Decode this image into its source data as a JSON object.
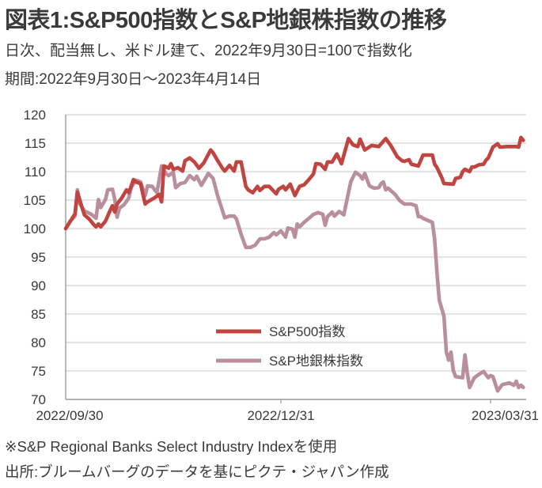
{
  "header": {
    "title": "図表1:S&P500指数とS&P地銀株指数の推移",
    "subtitle": "日次、配当無し、米ドル建て、2022年9月30日=100で指数化",
    "period": "期間:2022年9月30日～2023年4月14日"
  },
  "footer": {
    "note": "※S&P Regional Banks Select Industry Indexを使用",
    "source": "出所:ブルームバーグのデータを基にピクテ・ジャパン作成"
  },
  "chart_data": {
    "type": "line",
    "title": "図表1:S&P500指数とS&P地銀株指数の推移",
    "xlabel": "",
    "ylabel": "",
    "x_unit": "days since 2022/09/30",
    "xlim": [
      0,
      196
    ],
    "ylim": [
      70,
      120
    ],
    "y_ticks": [
      70,
      75,
      80,
      85,
      90,
      95,
      100,
      105,
      110,
      115,
      120
    ],
    "y_tick_labels": [
      "70",
      "75",
      "80",
      "85",
      "90",
      "95",
      "100",
      "105",
      "110",
      "115",
      "120"
    ],
    "x_ticks": [
      0,
      92,
      182
    ],
    "x_tick_labels": [
      "2022/09/30",
      "2022/12/31",
      "2023/03/31"
    ],
    "grid": true,
    "legend_position": "center-bottom",
    "colors": {
      "sp500": "#c0443f",
      "regional": "#b98e9f",
      "grid": "#e4e4e4",
      "axis": "#999999"
    },
    "series": [
      {
        "name": "S&P500指数",
        "color": "#c0443f",
        "points": [
          [
            0,
            100
          ],
          [
            4,
            102.6
          ],
          [
            5,
            106.4
          ],
          [
            7,
            103.7
          ],
          [
            8,
            102.4
          ],
          [
            10,
            101.7
          ],
          [
            12,
            100.7
          ],
          [
            13,
            100.3
          ],
          [
            14,
            100.8
          ],
          [
            15,
            100.3
          ],
          [
            17,
            101.3
          ],
          [
            19,
            103.2
          ],
          [
            20,
            104
          ],
          [
            21,
            102.9
          ],
          [
            22,
            104.3
          ],
          [
            24,
            105.4
          ],
          [
            26,
            106.8
          ],
          [
            27,
            106.3
          ],
          [
            29,
            108.6
          ],
          [
            30,
            108.2
          ],
          [
            32,
            107.9
          ],
          [
            34,
            104.3
          ],
          [
            35,
            104.7
          ],
          [
            38,
            105.4
          ],
          [
            40,
            106
          ],
          [
            41,
            104.7
          ],
          [
            42,
            111
          ],
          [
            44,
            110.6
          ],
          [
            45,
            111.4
          ],
          [
            46,
            110.4
          ],
          [
            48,
            110.7
          ],
          [
            50,
            110.1
          ],
          [
            51,
            111.9
          ],
          [
            53,
            112.4
          ],
          [
            55,
            111.7
          ],
          [
            57,
            110.6
          ],
          [
            59,
            111.5
          ],
          [
            62,
            113.8
          ],
          [
            63,
            113.3
          ],
          [
            65,
            111.9
          ],
          [
            67,
            110.6
          ],
          [
            68,
            110.1
          ],
          [
            70,
            111.1
          ],
          [
            72,
            110.1
          ],
          [
            73,
            111.7
          ],
          [
            75,
            111.7
          ],
          [
            77,
            107.4
          ],
          [
            78,
            106.8
          ],
          [
            80,
            106.3
          ],
          [
            82,
            107.4
          ],
          [
            83,
            106.7
          ],
          [
            85,
            107.4
          ],
          [
            87,
            107.4
          ],
          [
            90,
            106.1
          ],
          [
            91,
            106.9
          ],
          [
            93,
            107.4
          ],
          [
            94,
            106.8
          ],
          [
            96,
            107.8
          ],
          [
            98,
            105.8
          ],
          [
            100,
            107.4
          ],
          [
            102,
            107.7
          ],
          [
            104,
            108.6
          ],
          [
            106,
            109.6
          ],
          [
            107,
            111.4
          ],
          [
            109,
            111.3
          ],
          [
            111,
            110.4
          ],
          [
            112,
            111.7
          ],
          [
            114,
            111.7
          ],
          [
            116,
            113.1
          ],
          [
            118,
            111.4
          ],
          [
            121,
            115.8
          ],
          [
            123,
            114.7
          ],
          [
            125,
            114.4
          ],
          [
            126,
            115.7
          ],
          [
            128,
            113.8
          ],
          [
            131,
            114.6
          ],
          [
            134,
            114.4
          ],
          [
            137,
            115.8
          ],
          [
            139,
            114.7
          ],
          [
            140,
            114
          ],
          [
            142,
            112.6
          ],
          [
            144,
            111.9
          ],
          [
            145,
            111.8
          ],
          [
            147,
            112.1
          ],
          [
            148,
            111.3
          ],
          [
            150,
            111.1
          ],
          [
            151,
            111
          ],
          [
            153,
            112.9
          ],
          [
            157,
            112.9
          ],
          [
            158,
            111.3
          ],
          [
            159,
            110.7
          ],
          [
            161,
            109
          ],
          [
            162,
            107.9
          ],
          [
            166,
            107.8
          ],
          [
            167,
            108.8
          ],
          [
            168,
            108.9
          ],
          [
            169,
            109
          ],
          [
            170,
            110
          ],
          [
            171,
            110.4
          ],
          [
            173,
            110
          ],
          [
            174,
            110.8
          ],
          [
            175,
            110.8
          ],
          [
            177,
            111.2
          ],
          [
            179,
            111.3
          ],
          [
            180,
            112
          ],
          [
            181,
            112.4
          ],
          [
            183,
            114.3
          ],
          [
            185,
            114.9
          ],
          [
            186,
            114.3
          ],
          [
            189,
            114.4
          ],
          [
            193,
            114.4
          ],
          [
            194,
            114.3
          ],
          [
            195,
            116
          ],
          [
            196,
            115.5
          ]
        ]
      },
      {
        "name": "S&P地銀株指数",
        "color": "#b98e9f",
        "points": [
          [
            0,
            100
          ],
          [
            2,
            101.3
          ],
          [
            4,
            102.2
          ],
          [
            5,
            106.8
          ],
          [
            6,
            104.4
          ],
          [
            8,
            103.1
          ],
          [
            11,
            102.5
          ],
          [
            13,
            101.8
          ],
          [
            14,
            105.1
          ],
          [
            15,
            103.7
          ],
          [
            17,
            105.1
          ],
          [
            18,
            106.8
          ],
          [
            20,
            106.9
          ],
          [
            21,
            105.1
          ],
          [
            22,
            102
          ],
          [
            23,
            103.6
          ],
          [
            25,
            104.2
          ],
          [
            27,
            105.4
          ],
          [
            28,
            107.2
          ],
          [
            30,
            108.5
          ],
          [
            32,
            108.2
          ],
          [
            34,
            105.8
          ],
          [
            35,
            107.5
          ],
          [
            37,
            107.4
          ],
          [
            39,
            106.3
          ],
          [
            41,
            111
          ],
          [
            43,
            109.6
          ],
          [
            44,
            109.3
          ],
          [
            46,
            109.9
          ],
          [
            47,
            107.2
          ],
          [
            49,
            107.9
          ],
          [
            51,
            108.1
          ],
          [
            53,
            109.3
          ],
          [
            55,
            108.6
          ],
          [
            56,
            109.2
          ],
          [
            58,
            107.6
          ],
          [
            61,
            109.7
          ],
          [
            63,
            108.8
          ],
          [
            65,
            105.7
          ],
          [
            67,
            103.2
          ],
          [
            68,
            101.9
          ],
          [
            70,
            102.2
          ],
          [
            72,
            102.2
          ],
          [
            73,
            101.7
          ],
          [
            75,
            99
          ],
          [
            77,
            96.7
          ],
          [
            79,
            96.7
          ],
          [
            81,
            97.1
          ],
          [
            83,
            98.2
          ],
          [
            85,
            98.2
          ],
          [
            87,
            98.5
          ],
          [
            89,
            99.3
          ],
          [
            90,
            98.9
          ],
          [
            92,
            99.6
          ],
          [
            94,
            98.5
          ],
          [
            95,
            100.1
          ],
          [
            97,
            99.9
          ],
          [
            98,
            98.5
          ],
          [
            99,
            100.8
          ],
          [
            100,
            100.3
          ],
          [
            102,
            101.1
          ],
          [
            104,
            101.8
          ],
          [
            106,
            102.5
          ],
          [
            108,
            102.8
          ],
          [
            110,
            102.5
          ],
          [
            111,
            100.6
          ],
          [
            112,
            102.1
          ],
          [
            114,
            102.9
          ],
          [
            115,
            102.2
          ],
          [
            117,
            103
          ],
          [
            119,
            102.4
          ],
          [
            122,
            108.2
          ],
          [
            124,
            109.9
          ],
          [
            126,
            109.3
          ],
          [
            127,
            108.7
          ],
          [
            128,
            109.7
          ],
          [
            130,
            107.5
          ],
          [
            132,
            107.1
          ],
          [
            134,
            107.2
          ],
          [
            135,
            107.9
          ],
          [
            136,
            108.2
          ],
          [
            137,
            106.8
          ],
          [
            138,
            107.1
          ],
          [
            141,
            106
          ],
          [
            143,
            104.9
          ],
          [
            145,
            104.3
          ],
          [
            148,
            104.3
          ],
          [
            150,
            104
          ],
          [
            151,
            102.1
          ],
          [
            152,
            102.1
          ],
          [
            153,
            101.8
          ],
          [
            157,
            101.1
          ],
          [
            158,
            98.2
          ],
          [
            159,
            92.2
          ],
          [
            160,
            87.4
          ],
          [
            162,
            84.6
          ],
          [
            163,
            78.3
          ],
          [
            164,
            76.9
          ],
          [
            165,
            78.3
          ],
          [
            166,
            75.1
          ],
          [
            167,
            74
          ],
          [
            170,
            73.8
          ],
          [
            171,
            77.8
          ],
          [
            172,
            74.6
          ],
          [
            173,
            72.1
          ],
          [
            175,
            73.8
          ],
          [
            177,
            74.4
          ],
          [
            179,
            74.9
          ],
          [
            181,
            73.8
          ],
          [
            182,
            74.2
          ],
          [
            183,
            74
          ],
          [
            185,
            71.5
          ],
          [
            187,
            72.6
          ],
          [
            190,
            72.9
          ],
          [
            192,
            72.5
          ],
          [
            193,
            73.2
          ],
          [
            194,
            72.1
          ],
          [
            195,
            72.5
          ],
          [
            196,
            72.1
          ]
        ]
      }
    ]
  }
}
